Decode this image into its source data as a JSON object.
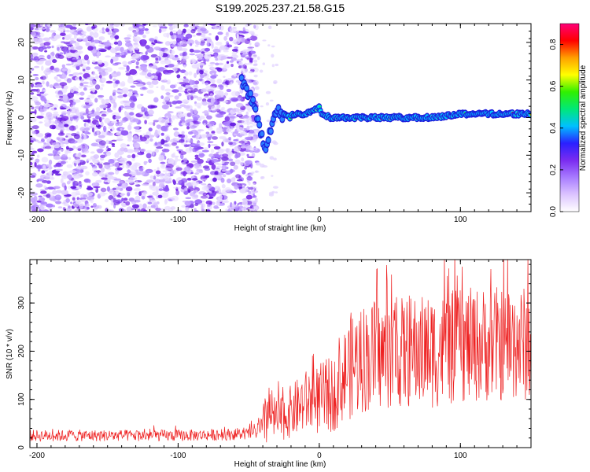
{
  "title": "S199.2025.237.21.58.G15",
  "chart_data": [
    {
      "type": "heatmap",
      "xlabel": "Height of straight line (km)",
      "ylabel": "Frequency (Hz)",
      "xlim": [
        -205,
        150
      ],
      "ylim": [
        -25,
        25
      ],
      "xticks": [
        -200,
        -100,
        0,
        100
      ],
      "yticks": [
        -20,
        -10,
        0,
        10,
        20
      ],
      "noise_region_x": [
        -205,
        -50
      ],
      "transition_x": [
        -50,
        -5
      ],
      "signal_track": {
        "x": [
          -55,
          -48,
          -42,
          -38,
          -34,
          -30,
          -25,
          -18,
          -10,
          -4,
          0,
          2,
          8,
          20,
          40,
          60,
          80,
          100,
          120,
          150
        ],
        "freq_hz": [
          10,
          5,
          -3,
          -8,
          -2,
          2,
          0,
          1,
          1,
          2,
          3,
          1,
          0,
          0,
          0,
          0,
          0,
          1,
          1,
          1
        ]
      },
      "colorbar": {
        "label": "Normalized spectral amplitude",
        "range": [
          0.0,
          0.9
        ],
        "ticks": [
          "0.0",
          "0.2",
          "0.4",
          "0.6",
          "0.8"
        ],
        "tick_values": [
          0.0,
          0.2,
          0.4,
          0.6,
          0.8
        ],
        "colors": [
          "#ffffff",
          "#dcc4ff",
          "#a87cff",
          "#7a2cf0",
          "#2a20ff",
          "#00c0ff",
          "#00e878",
          "#30f000",
          "#ffff00",
          "#ffa000",
          "#ff0000",
          "#ff0078"
        ]
      }
    },
    {
      "type": "line",
      "xlabel": "Height of straight line (km)",
      "ylabel": "SNR (10 * v/v)",
      "xlim": [
        -205,
        150
      ],
      "ylim": [
        0,
        390
      ],
      "xticks": [
        -200,
        -100,
        0,
        100
      ],
      "yticks": [
        0,
        100,
        200,
        300
      ],
      "color": "#ee2222",
      "envelope": {
        "x": [
          -205,
          -150,
          -100,
          -50,
          -40,
          -38,
          -35,
          -30,
          -20,
          -10,
          0,
          10,
          15,
          20,
          30,
          50,
          80,
          100,
          120,
          150
        ],
        "mean": [
          25,
          25,
          25,
          28,
          40,
          80,
          70,
          55,
          75,
          95,
          100,
          110,
          130,
          165,
          185,
          195,
          200,
          210,
          215,
          215
        ],
        "amplitude": [
          12,
          12,
          12,
          12,
          25,
          90,
          60,
          45,
          55,
          65,
          75,
          80,
          80,
          110,
          115,
          115,
          120,
          120,
          120,
          120
        ]
      }
    }
  ]
}
